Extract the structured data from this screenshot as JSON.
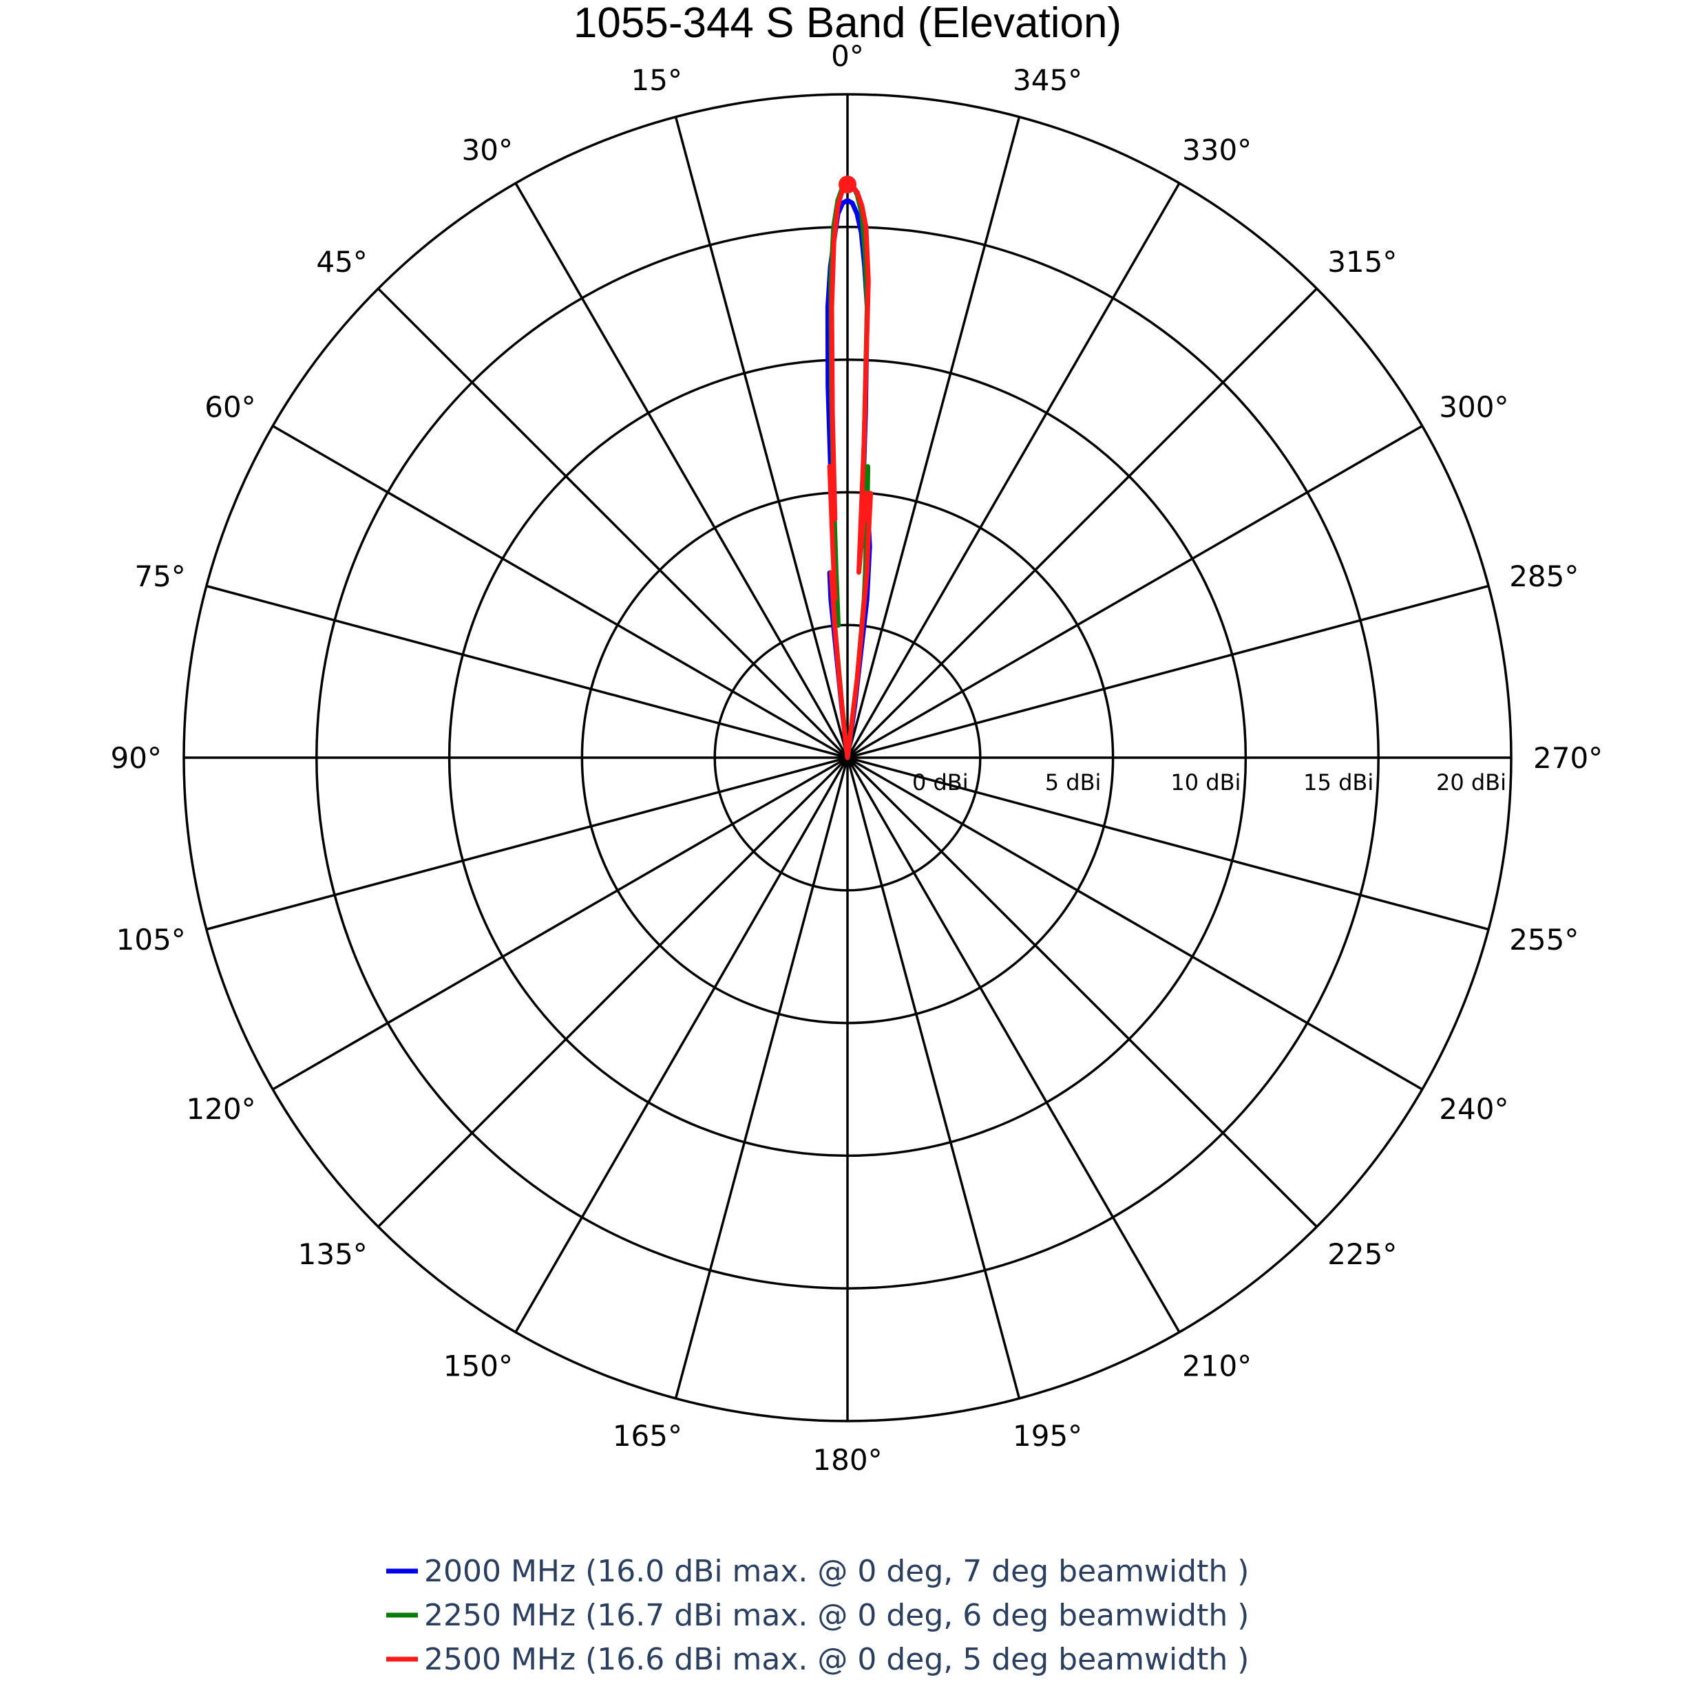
{
  "chart_data": {
    "type": "polar-line",
    "title": "1055-344 S Band (Elevation)",
    "radial_axis": {
      "unit": "dBi",
      "range": [
        -5,
        20
      ],
      "ticks": [
        0,
        5,
        10,
        15,
        20
      ],
      "tick_labels": [
        "0 dBi",
        "5 dBi",
        "10 dBi",
        "15 dBi",
        "20 dBi"
      ]
    },
    "angular_axis": {
      "direction": "counterclockwise",
      "zero_at": "top",
      "ticks": [
        0,
        15,
        30,
        45,
        60,
        75,
        90,
        105,
        120,
        135,
        150,
        165,
        180,
        195,
        210,
        225,
        240,
        255,
        270,
        285,
        300,
        315,
        330,
        345
      ],
      "tick_labels": [
        "0°",
        "15°",
        "30°",
        "45°",
        "60°",
        "75°",
        "90°",
        "105°",
        "120°",
        "135°",
        "150°",
        "165°",
        "180°",
        "195°",
        "210°",
        "225°",
        "240°",
        "255°",
        "270°",
        "285°",
        "300°",
        "315°",
        "330°",
        "345°"
      ]
    },
    "grid": true,
    "legend_position": "bottom",
    "series": [
      {
        "name": "2000 MHz (16.0 dBi max. @ 0 deg, 7 deg beamwidth )",
        "color": "#0000ee",
        "points": [
          [
            -9,
            -5
          ],
          [
            -8,
            -3
          ],
          [
            -7,
            1
          ],
          [
            -6,
            3
          ],
          [
            -5,
            4
          ],
          [
            -4.5,
            4.5
          ],
          [
            -4,
            3
          ],
          [
            -3.5,
            4
          ],
          [
            -3,
            8
          ],
          [
            -2.5,
            12
          ],
          [
            -2,
            13.5
          ],
          [
            -1.5,
            14.8
          ],
          [
            -1,
            15.5
          ],
          [
            -0.5,
            15.9
          ],
          [
            0,
            16.0
          ],
          [
            0.5,
            15.9
          ],
          [
            1,
            15.5
          ],
          [
            1.5,
            14.5
          ],
          [
            2,
            13.5
          ],
          [
            2.5,
            12
          ],
          [
            3,
            9
          ],
          [
            3.5,
            5
          ],
          [
            4,
            2
          ],
          [
            4.5,
            0
          ],
          [
            5,
            1
          ],
          [
            5.5,
            2
          ],
          [
            6,
            1
          ],
          [
            6.5,
            -3
          ],
          [
            7,
            -5
          ]
        ]
      },
      {
        "name": "2250 MHz (16.7 dBi max. @ 0 deg, 6 deg beamwidth )",
        "color": "#0a7d0a",
        "points": [
          [
            -8,
            -5
          ],
          [
            -7,
            -2
          ],
          [
            -6,
            1
          ],
          [
            -5.5,
            2
          ],
          [
            -5,
            3
          ],
          [
            -4.5,
            4.5
          ],
          [
            -4,
            6
          ],
          [
            -3.5,
            4
          ],
          [
            -3,
            7
          ],
          [
            -2.5,
            12
          ],
          [
            -2,
            14
          ],
          [
            -1.5,
            15.5
          ],
          [
            -1,
            16.2
          ],
          [
            -0.5,
            16.6
          ],
          [
            0,
            16.7
          ],
          [
            0.5,
            16.5
          ],
          [
            1,
            16.0
          ],
          [
            1.5,
            15
          ],
          [
            2,
            13
          ],
          [
            2.5,
            9
          ],
          [
            3,
            5
          ],
          [
            3.5,
            2
          ],
          [
            4,
            0
          ],
          [
            4.5,
            1
          ],
          [
            5,
            2
          ],
          [
            5.5,
            0
          ],
          [
            6,
            -3
          ],
          [
            7,
            -5
          ]
        ]
      },
      {
        "name": "2500 MHz (16.6 dBi max. @ 0 deg, 5 deg beamwidth )",
        "color": "#ff1a1a",
        "points": [
          [
            -8,
            -5
          ],
          [
            -7,
            -2
          ],
          [
            -6,
            2
          ],
          [
            -5.5,
            3
          ],
          [
            -5,
            5
          ],
          [
            -4.5,
            4
          ],
          [
            -4,
            5
          ],
          [
            -3.5,
            2
          ],
          [
            -3,
            7
          ],
          [
            -2.5,
            13
          ],
          [
            -2,
            15
          ],
          [
            -1.5,
            15.8
          ],
          [
            -1,
            16.3
          ],
          [
            -0.5,
            16.55
          ],
          [
            0,
            16.6
          ],
          [
            0.5,
            16.4
          ],
          [
            1,
            15.8
          ],
          [
            1.5,
            14.5
          ],
          [
            2,
            12
          ],
          [
            2.5,
            8
          ],
          [
            3,
            4
          ],
          [
            3.5,
            6
          ],
          [
            4,
            3
          ],
          [
            4.5,
            1
          ],
          [
            5,
            2
          ],
          [
            5.5,
            0
          ],
          [
            6,
            -2
          ],
          [
            6.5,
            -4
          ],
          [
            7,
            -5
          ]
        ]
      }
    ],
    "peak_marker": {
      "angle": 0,
      "value": 16.6,
      "color": "#ff1a1a"
    }
  }
}
